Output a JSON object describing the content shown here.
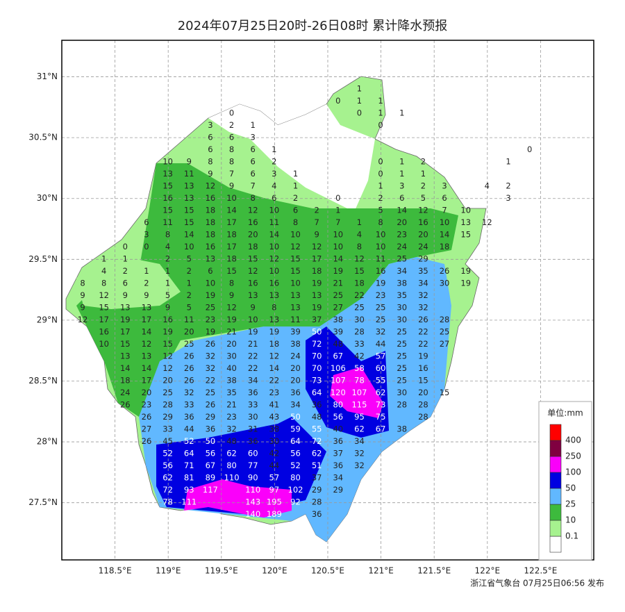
{
  "title": "2024年07月25日20时-26日08时 累计降水预报",
  "map": {
    "xlim": [
      118,
      123
    ],
    "ylim": [
      27.03,
      31.3
    ],
    "xticks": [
      {
        "value": 118.5,
        "label": "118.5°E"
      },
      {
        "value": 119,
        "label": "119°E"
      },
      {
        "value": 119.5,
        "label": "119.5°E"
      },
      {
        "value": 120,
        "label": "120°E"
      },
      {
        "value": 120.5,
        "label": "120.5°E"
      },
      {
        "value": 121,
        "label": "121°E"
      },
      {
        "value": 121.5,
        "label": "121.5°E"
      },
      {
        "value": 122,
        "label": "122°E"
      },
      {
        "value": 122.5,
        "label": "122.5°E"
      }
    ],
    "yticks": [
      {
        "value": 27.5,
        "label": "27.5°N"
      },
      {
        "value": 28,
        "label": "28°N"
      },
      {
        "value": 28.5,
        "label": "28.5°N"
      },
      {
        "value": 29,
        "label": "29°N"
      },
      {
        "value": 29.5,
        "label": "29.5°N"
      },
      {
        "value": 30,
        "label": "30°N"
      },
      {
        "value": 30.5,
        "label": "30.5°N"
      },
      {
        "value": 31,
        "label": "31°N"
      }
    ],
    "grid": true
  },
  "stations": {
    "rows": [
      [
        null,
        null,
        null,
        null,
        null,
        null,
        null,
        null,
        null,
        null,
        null,
        null,
        null,
        1
      ],
      [
        null,
        null,
        null,
        null,
        null,
        null,
        null,
        null,
        null,
        null,
        null,
        null,
        0,
        1,
        1
      ],
      [
        null,
        null,
        null,
        null,
        null,
        null,
        null,
        0,
        null,
        null,
        null,
        null,
        null,
        0,
        1,
        1
      ],
      [
        null,
        null,
        null,
        null,
        null,
        null,
        3,
        2,
        1,
        null,
        null,
        null,
        null,
        null,
        0
      ],
      [
        null,
        null,
        null,
        null,
        null,
        null,
        6,
        6,
        3
      ],
      [
        null,
        null,
        null,
        null,
        null,
        null,
        6,
        8,
        6,
        1,
        null,
        null,
        null,
        null,
        null,
        null,
        null,
        null,
        null,
        null,
        null,
        0
      ],
      [
        null,
        null,
        null,
        null,
        10,
        9,
        8,
        8,
        6,
        2,
        null,
        null,
        null,
        null,
        0,
        1,
        2,
        null,
        null,
        null,
        1
      ],
      [
        null,
        null,
        null,
        null,
        13,
        11,
        9,
        7,
        6,
        3,
        1,
        null,
        null,
        null,
        0,
        1,
        1
      ],
      [
        null,
        null,
        null,
        null,
        15,
        13,
        12,
        9,
        7,
        4,
        1,
        null,
        null,
        null,
        1,
        3,
        2,
        3,
        null,
        4,
        2
      ],
      [
        null,
        null,
        null,
        null,
        16,
        13,
        16,
        10,
        8,
        6,
        2,
        null,
        0,
        null,
        2,
        6,
        5,
        6,
        null,
        null,
        3
      ],
      [
        null,
        null,
        null,
        null,
        15,
        15,
        18,
        14,
        12,
        10,
        6,
        2,
        1,
        null,
        5,
        14,
        12,
        7,
        10
      ],
      [
        null,
        null,
        null,
        6,
        11,
        15,
        18,
        17,
        16,
        11,
        8,
        7,
        7,
        1,
        8,
        20,
        16,
        10,
        13,
        12
      ],
      [
        null,
        null,
        null,
        3,
        8,
        14,
        18,
        18,
        20,
        14,
        10,
        9,
        10,
        4,
        10,
        23,
        20,
        14,
        15
      ],
      [
        null,
        null,
        0,
        0,
        4,
        10,
        16,
        17,
        18,
        10,
        12,
        12,
        10,
        8,
        10,
        24,
        24,
        18
      ],
      [
        null,
        1,
        1,
        null,
        2,
        5,
        13,
        18,
        15,
        12,
        15,
        17,
        14,
        12,
        11,
        25,
        29
      ],
      [
        null,
        4,
        2,
        1,
        1,
        2,
        6,
        15,
        12,
        10,
        15,
        18,
        19,
        15,
        16,
        34,
        35,
        26,
        19
      ],
      [
        8,
        8,
        6,
        2,
        1,
        1,
        10,
        8,
        16,
        16,
        10,
        19,
        21,
        18,
        19,
        38,
        34,
        30,
        19
      ],
      [
        9,
        12,
        9,
        9,
        5,
        2,
        19,
        9,
        13,
        13,
        13,
        13,
        25,
        22,
        23,
        35,
        32
      ],
      [
        9,
        15,
        13,
        13,
        9,
        5,
        25,
        12,
        9,
        8,
        13,
        19,
        27,
        25,
        25,
        30,
        32
      ],
      [
        12,
        17,
        19,
        17,
        16,
        11,
        23,
        19,
        10,
        13,
        11,
        37,
        38,
        30,
        25,
        30,
        26,
        28
      ],
      [
        null,
        16,
        17,
        14,
        19,
        20,
        19,
        21,
        19,
        19,
        39,
        50,
        39,
        28,
        32,
        25,
        22,
        25
      ],
      [
        null,
        10,
        15,
        12,
        15,
        25,
        26,
        20,
        21,
        18,
        38,
        72,
        48,
        33,
        44,
        25,
        22,
        27
      ],
      [
        null,
        null,
        13,
        13,
        12,
        26,
        32,
        30,
        22,
        12,
        24,
        70,
        67,
        42,
        57,
        25,
        19
      ],
      [
        null,
        null,
        14,
        14,
        12,
        26,
        32,
        40,
        22,
        14,
        20,
        70,
        106,
        58,
        60,
        25,
        16
      ],
      [
        null,
        null,
        18,
        17,
        20,
        26,
        22,
        38,
        34,
        22,
        20,
        73,
        107,
        78,
        55,
        25,
        15
      ],
      [
        null,
        null,
        24,
        20,
        25,
        32,
        25,
        35,
        36,
        23,
        36,
        64,
        120,
        107,
        62,
        30,
        20,
        15
      ],
      [
        null,
        null,
        26,
        23,
        28,
        33,
        26,
        21,
        33,
        41,
        34,
        36,
        80,
        115,
        73,
        28,
        28
      ],
      [
        null,
        null,
        null,
        26,
        29,
        36,
        29,
        23,
        30,
        43,
        50,
        48,
        56,
        95,
        75,
        null,
        28
      ],
      [
        null,
        null,
        null,
        27,
        33,
        44,
        36,
        32,
        31,
        38,
        59,
        55,
        40,
        62,
        67,
        38
      ],
      [
        null,
        null,
        null,
        26,
        45,
        52,
        50,
        48,
        36,
        30,
        64,
        72,
        36,
        34
      ],
      [
        null,
        null,
        null,
        null,
        52,
        64,
        56,
        62,
        60,
        42,
        56,
        62,
        37,
        32
      ],
      [
        null,
        null,
        null,
        null,
        56,
        71,
        67,
        80,
        77,
        44,
        52,
        51,
        36,
        32
      ],
      [
        null,
        null,
        null,
        null,
        62,
        81,
        89,
        110,
        90,
        57,
        80,
        37,
        34
      ],
      [
        null,
        null,
        null,
        null,
        72,
        93,
        117,
        null,
        110,
        97,
        102,
        29,
        29
      ],
      [
        null,
        null,
        null,
        null,
        78,
        111,
        null,
        null,
        143,
        195,
        92,
        28
      ],
      [
        null,
        null,
        null,
        null,
        null,
        null,
        null,
        null,
        140,
        189,
        null,
        36
      ]
    ]
  },
  "legend": {
    "title": "单位:mm",
    "levels": [
      0.1,
      10,
      25,
      50,
      100,
      250,
      400
    ],
    "colors": [
      "#ffffff",
      "#a6f28f",
      "#3dba3d",
      "#61b8ff",
      "#0000e1",
      "#fa00fa",
      "#800040",
      "#ff0000"
    ]
  },
  "footer": "浙江省气象台 07月25日06:56 发布"
}
